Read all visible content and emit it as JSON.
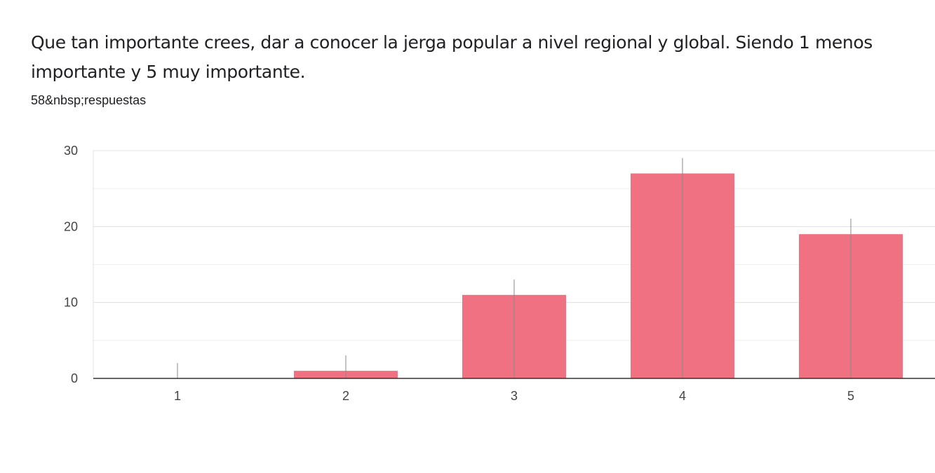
{
  "question": {
    "title": "Que tan importante crees, dar a conocer la jerga popular a nivel regional y global. Siendo 1 menos importante y 5 muy importante.",
    "response_count": "58&nbsp;respuestas"
  },
  "colors": {
    "bar": "#f07282",
    "gridline": "#e0e0e0",
    "minor_gridline": "#eeeeee",
    "axis": "#333333",
    "tick_label": "#444444"
  },
  "chart_data": {
    "type": "bar",
    "categories": [
      "1",
      "2",
      "3",
      "4",
      "5"
    ],
    "values": [
      0,
      1,
      11,
      27,
      19
    ],
    "ylim": [
      0,
      30
    ],
    "yticks": [
      0,
      10,
      20,
      30
    ],
    "title": "",
    "xlabel": "",
    "ylabel": "",
    "grid": true,
    "legend": "none"
  }
}
